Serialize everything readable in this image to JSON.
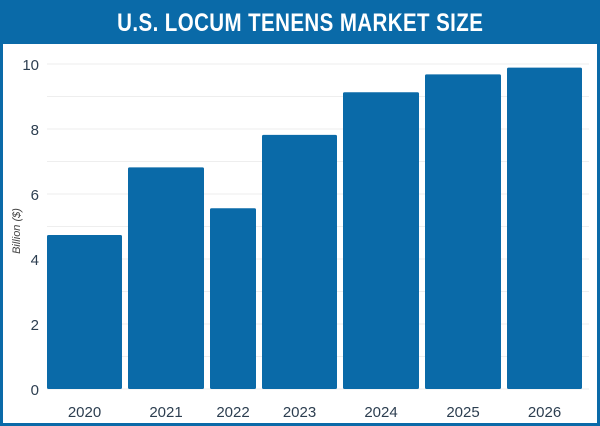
{
  "chart_data": {
    "type": "bar",
    "title": "U.S. LOCUM TENENS MARKET SIZE",
    "xlabel": "",
    "ylabel": "Billion ($)",
    "categories": [
      "2020",
      "2021",
      "2022",
      "2023",
      "2024",
      "2025",
      "2026"
    ],
    "values": [
      4.74,
      6.82,
      5.56,
      7.82,
      9.13,
      9.68,
      9.89
    ],
    "ylim": [
      0,
      10
    ],
    "yticks": [
      "0",
      "2",
      "4",
      "6",
      "8",
      "10"
    ],
    "grid": true,
    "legend": "none",
    "colors": {
      "bar": "#0a6aa8",
      "header": "#0a6aa8"
    }
  }
}
